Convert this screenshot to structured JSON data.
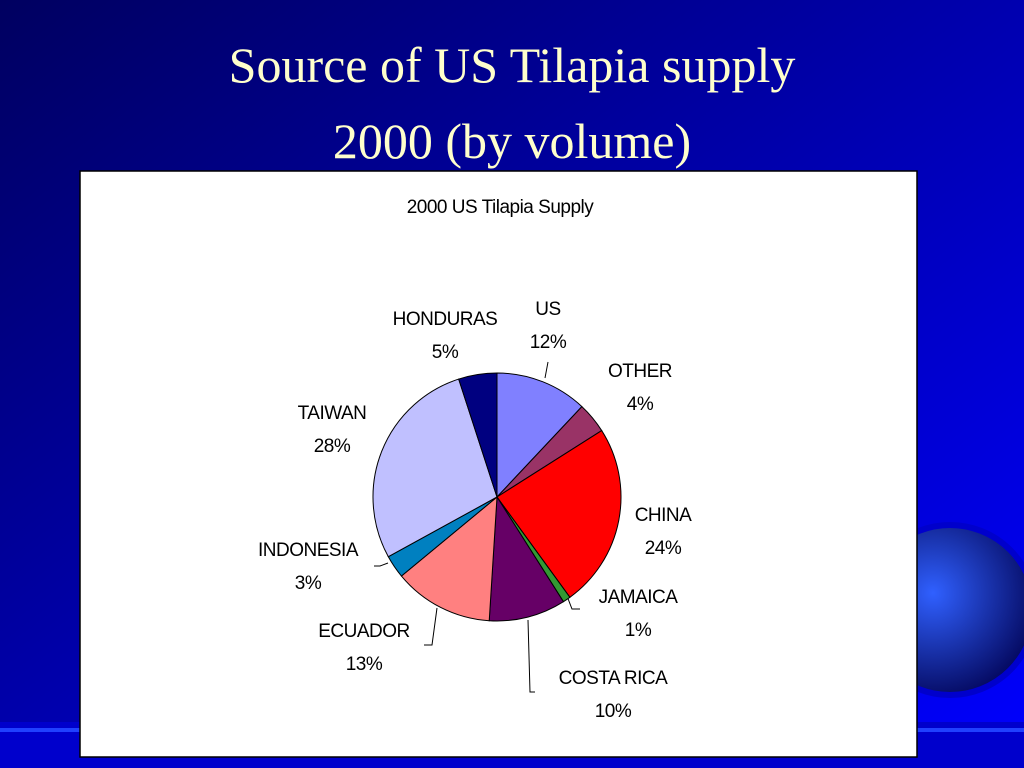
{
  "slide": {
    "title": [
      "Source of US Tilapia supply",
      "2000 (by volume)"
    ]
  },
  "chart_data": {
    "type": "pie",
    "title": "2000 US Tilapia Supply",
    "categories": [
      "US",
      "OTHER",
      "CHINA",
      "JAMAICA",
      "COSTA RICA",
      "ECUADOR",
      "INDONESIA",
      "TAIWAN",
      "HONDURAS"
    ],
    "values": [
      12,
      4,
      24,
      1,
      10,
      13,
      3,
      28,
      5
    ],
    "value_labels": [
      "12%",
      "4%",
      "24%",
      "1%",
      "10%",
      "13%",
      "3%",
      "28%",
      "5%"
    ],
    "colors": [
      "#8080ff",
      "#993366",
      "#ff0000",
      "#339933",
      "#660066",
      "#ff8080",
      "#0080c0",
      "#c0c0ff",
      "#000080"
    ]
  }
}
